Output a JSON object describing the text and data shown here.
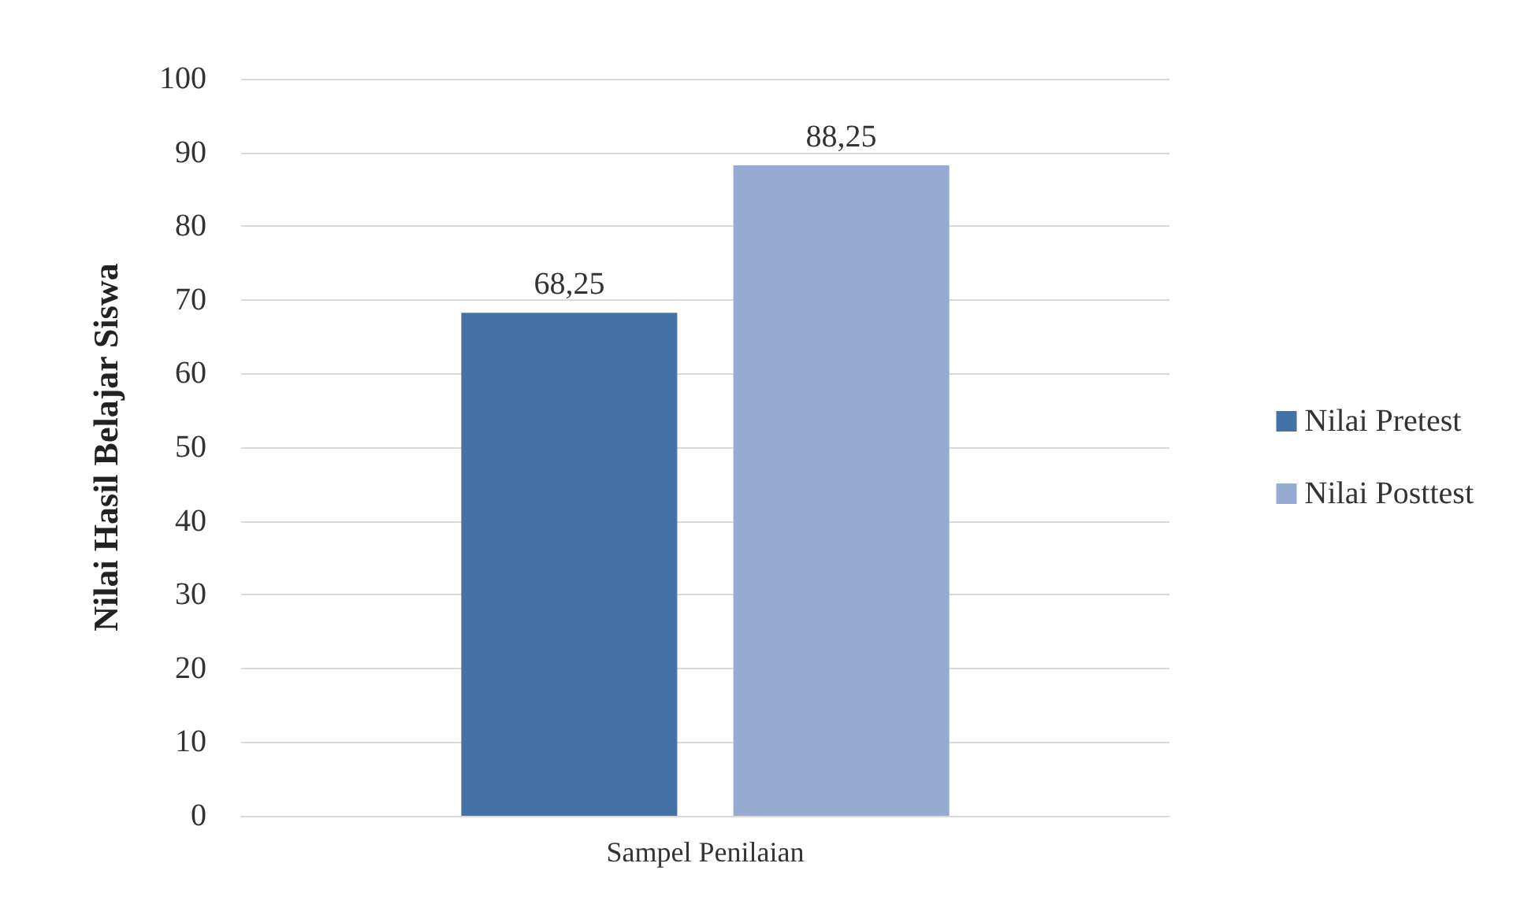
{
  "chart_data": {
    "type": "bar",
    "ylabel": "Nilai Hasil Belajar Siswa",
    "categories": [
      "Sampel Penilaian"
    ],
    "series": [
      {
        "name": "Nilai Pretest",
        "color": "#4472a6",
        "values": [
          68.25
        ],
        "value_labels": [
          "68,25"
        ]
      },
      {
        "name": "Nilai Posttest",
        "color": "#95abd2",
        "values": [
          88.25
        ],
        "value_labels": [
          "88,25"
        ]
      }
    ],
    "ylim": [
      0,
      100
    ],
    "yticks": [
      0,
      10,
      20,
      30,
      40,
      50,
      60,
      70,
      80,
      90,
      100
    ],
    "grid": "y",
    "legend": "right"
  }
}
